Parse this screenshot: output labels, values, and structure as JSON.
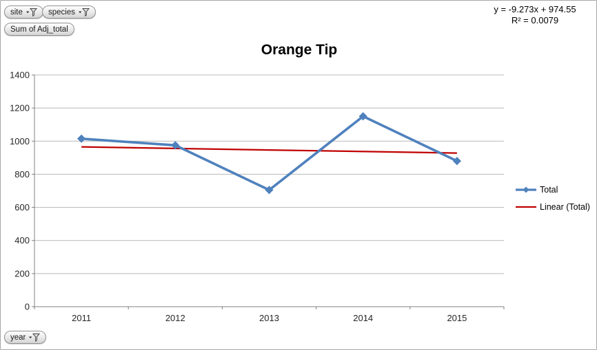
{
  "pivot_filters": {
    "site": "site",
    "species": "species",
    "values": "Sum of Adj_total",
    "axis": "year"
  },
  "annotation": {
    "equation": "y = -9.273x + 974.55",
    "r_squared": "R² = 0.0079"
  },
  "icons": {
    "filter": "funnel-with-dropdown-arrow"
  },
  "chart_data": {
    "type": "line",
    "title": "Orange Tip",
    "categories": [
      "2011",
      "2012",
      "2013",
      "2014",
      "2015"
    ],
    "series": [
      {
        "name": "Total",
        "values": [
          1015,
          975,
          705,
          1150,
          880
        ],
        "color": "#4F81BD",
        "marker": "diamond"
      }
    ],
    "trendline": {
      "name": "Linear (Total)",
      "slope": -9.273,
      "intercept": 974.55,
      "r_squared": 0.0079,
      "color": "#C00000"
    },
    "xlabel": "",
    "ylabel": "",
    "ylim": [
      0,
      1400
    ],
    "ytick_step": 200,
    "yticks": [
      0,
      200,
      400,
      600,
      800,
      1000,
      1200,
      1400
    ],
    "grid": true,
    "legend_position": "right",
    "legend": [
      {
        "label": "Total",
        "color": "#4F81BD",
        "marker": "diamond-line"
      },
      {
        "label": "Linear (Total)",
        "color": "#C00000",
        "marker": "line"
      }
    ]
  },
  "colors": {
    "series_blue": "#4F81BD",
    "trendline_red": "#C00000",
    "gridline": "#B8B8B8",
    "axis": "#808080",
    "label_text": "#262626",
    "background": "#FFFFFF"
  }
}
